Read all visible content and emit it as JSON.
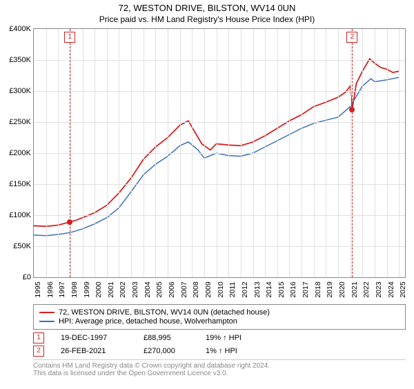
{
  "title": "72, WESTON DRIVE, BILSTON, WV14 0UN",
  "subtitle": "Price paid vs. HM Land Registry's House Price Index (HPI)",
  "chart": {
    "type": "line",
    "ylabel_prefix": "£",
    "ylim": [
      0,
      400000
    ],
    "ytick_step": 50000,
    "yticks": [
      {
        "v": 0,
        "label": "£0"
      },
      {
        "v": 50000,
        "label": "£50K"
      },
      {
        "v": 100000,
        "label": "£100K"
      },
      {
        "v": 150000,
        "label": "£150K"
      },
      {
        "v": 200000,
        "label": "£200K"
      },
      {
        "v": 250000,
        "label": "£250K"
      },
      {
        "v": 300000,
        "label": "£300K"
      },
      {
        "v": 350000,
        "label": "£350K"
      },
      {
        "v": 400000,
        "label": "£400K"
      }
    ],
    "xlim": [
      1995,
      2025.5
    ],
    "xticks": [
      1995,
      1996,
      1997,
      1998,
      1999,
      2000,
      2001,
      2002,
      2003,
      2004,
      2005,
      2006,
      2007,
      2008,
      2009,
      2010,
      2011,
      2012,
      2013,
      2014,
      2015,
      2016,
      2017,
      2018,
      2019,
      2020,
      2021,
      2022,
      2023,
      2024,
      2025
    ],
    "grid_color": "#e0e0e0",
    "background_color": "#ffffff",
    "series": [
      {
        "id": "price_paid",
        "label": "72, WESTON DRIVE, BILSTON, WV14 0UN (detached house)",
        "color": "#d42020",
        "line_width": 1.8,
        "points": [
          [
            1995.0,
            83000
          ],
          [
            1996.0,
            82000
          ],
          [
            1997.0,
            84000
          ],
          [
            1997.96,
            88995
          ],
          [
            1998.5,
            92000
          ],
          [
            1999.0,
            96000
          ],
          [
            2000.0,
            104000
          ],
          [
            2001.0,
            116000
          ],
          [
            2002.0,
            136000
          ],
          [
            2003.0,
            160000
          ],
          [
            2004.0,
            190000
          ],
          [
            2005.0,
            210000
          ],
          [
            2006.0,
            225000
          ],
          [
            2007.0,
            245000
          ],
          [
            2007.7,
            252000
          ],
          [
            2008.2,
            235000
          ],
          [
            2008.8,
            215000
          ],
          [
            2009.5,
            205000
          ],
          [
            2010.0,
            215000
          ],
          [
            2011.0,
            213000
          ],
          [
            2012.0,
            212000
          ],
          [
            2013.0,
            218000
          ],
          [
            2014.0,
            228000
          ],
          [
            2015.0,
            240000
          ],
          [
            2016.0,
            252000
          ],
          [
            2017.0,
            262000
          ],
          [
            2018.0,
            275000
          ],
          [
            2019.0,
            282000
          ],
          [
            2020.0,
            290000
          ],
          [
            2020.6,
            298000
          ],
          [
            2021.0,
            308000
          ],
          [
            2021.16,
            270000
          ],
          [
            2021.5,
            312000
          ],
          [
            2022.0,
            332000
          ],
          [
            2022.6,
            352000
          ],
          [
            2023.0,
            345000
          ],
          [
            2023.5,
            338000
          ],
          [
            2024.0,
            335000
          ],
          [
            2024.5,
            330000
          ],
          [
            2025.0,
            332000
          ]
        ]
      },
      {
        "id": "hpi",
        "label": "HPI: Average price, detached house, Wolverhampton",
        "color": "#3b6fb6",
        "line_width": 1.5,
        "points": [
          [
            1995.0,
            68000
          ],
          [
            1996.0,
            67000
          ],
          [
            1997.0,
            69000
          ],
          [
            1998.0,
            72000
          ],
          [
            1999.0,
            78000
          ],
          [
            2000.0,
            86000
          ],
          [
            2001.0,
            96000
          ],
          [
            2002.0,
            112000
          ],
          [
            2003.0,
            138000
          ],
          [
            2004.0,
            165000
          ],
          [
            2005.0,
            182000
          ],
          [
            2006.0,
            195000
          ],
          [
            2007.0,
            212000
          ],
          [
            2007.7,
            218000
          ],
          [
            2008.5,
            205000
          ],
          [
            2009.0,
            192000
          ],
          [
            2010.0,
            200000
          ],
          [
            2011.0,
            196000
          ],
          [
            2012.0,
            195000
          ],
          [
            2013.0,
            200000
          ],
          [
            2014.0,
            210000
          ],
          [
            2015.0,
            220000
          ],
          [
            2016.0,
            230000
          ],
          [
            2017.0,
            240000
          ],
          [
            2018.0,
            248000
          ],
          [
            2019.0,
            253000
          ],
          [
            2020.0,
            258000
          ],
          [
            2021.0,
            275000
          ],
          [
            2022.0,
            308000
          ],
          [
            2022.7,
            320000
          ],
          [
            2023.0,
            315000
          ],
          [
            2024.0,
            318000
          ],
          [
            2025.0,
            322000
          ]
        ]
      }
    ],
    "markers": [
      {
        "id": "1",
        "x": 1997.96,
        "y": 88995,
        "color": "#d42020"
      },
      {
        "id": "2",
        "x": 2021.16,
        "y": 270000,
        "color": "#d42020"
      }
    ]
  },
  "legend": [
    {
      "color": "#d42020",
      "label": "72, WESTON DRIVE, BILSTON, WV14 0UN (detached house)"
    },
    {
      "color": "#3b6fb6",
      "label": "HPI: Average price, detached house, Wolverhampton"
    }
  ],
  "transactions": [
    {
      "id": "1",
      "date": "19-DEC-1997",
      "price": "£88,995",
      "delta": "19% ↑ HPI",
      "color": "#d42020"
    },
    {
      "id": "2",
      "date": "26-FEB-2021",
      "price": "£270,000",
      "delta": "1% ↑ HPI",
      "color": "#d42020"
    }
  ],
  "footer": [
    "Contains HM Land Registry data © Crown copyright and database right 2024.",
    "This data is licensed under the Open Government Licence v3.0."
  ]
}
